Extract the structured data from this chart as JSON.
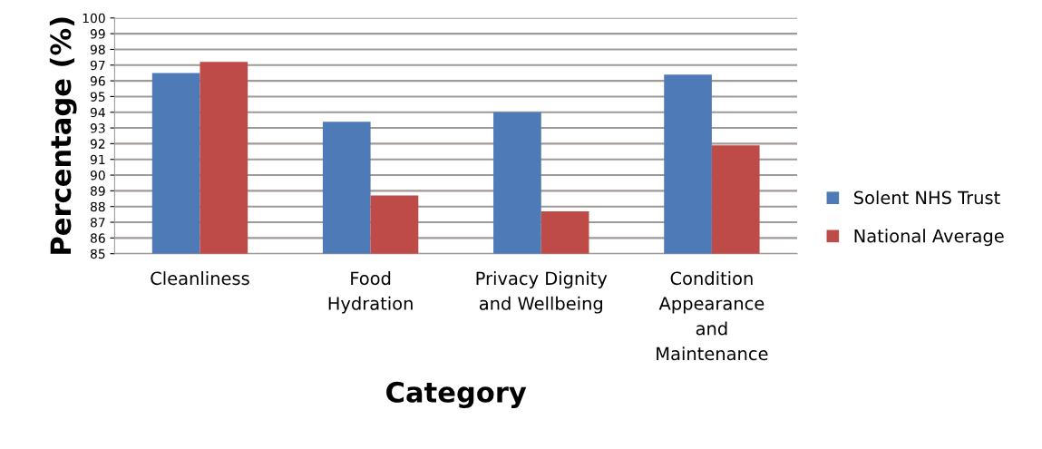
{
  "chart_data": {
    "type": "bar",
    "xlabel": "Category",
    "ylabel": "Percentage (%)",
    "categories": [
      "Cleanliness",
      "Food\nHydration",
      "Privacy Dignity\nand Wellbeing",
      "Condition\nAppearance\nand\nMaintenance"
    ],
    "series": [
      {
        "name": "Solent NHS Trust",
        "color": "#4f7ab8",
        "values": [
          96.5,
          93.4,
          94.0,
          96.4
        ]
      },
      {
        "name": "National Average",
        "color": "#be4b48",
        "values": [
          97.2,
          88.7,
          87.7,
          91.9
        ]
      }
    ],
    "ylim": [
      85,
      100
    ],
    "yticks": [
      85,
      86,
      87,
      88,
      89,
      90,
      91,
      92,
      93,
      94,
      95,
      96,
      97,
      98,
      99,
      100
    ],
    "grid": "y",
    "legend": "right"
  }
}
